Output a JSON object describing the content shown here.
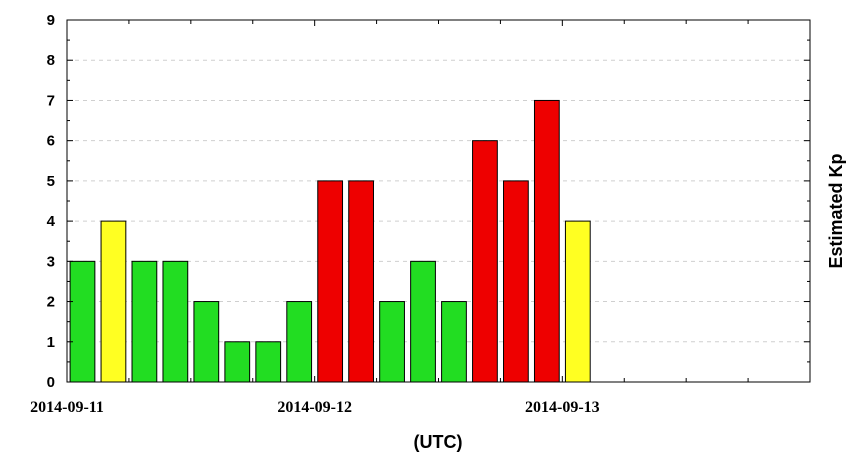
{
  "chart_data": {
    "type": "bar",
    "x": [
      "2014-09-11 00:00",
      "2014-09-11 03:00",
      "2014-09-11 06:00",
      "2014-09-11 09:00",
      "2014-09-11 12:00",
      "2014-09-11 15:00",
      "2014-09-11 18:00",
      "2014-09-11 21:00",
      "2014-09-12 00:00",
      "2014-09-12 03:00",
      "2014-09-12 06:00",
      "2014-09-12 09:00",
      "2014-09-12 12:00",
      "2014-09-12 15:00",
      "2014-09-12 18:00",
      "2014-09-12 21:00",
      "2014-09-13 00:00"
    ],
    "values": [
      3,
      4,
      3,
      3,
      2,
      1,
      1,
      2,
      5,
      5,
      2,
      3,
      2,
      6,
      5,
      7,
      4
    ],
    "bar_colors": [
      "#22dd22",
      "#ffff22",
      "#22dd22",
      "#22dd22",
      "#22dd22",
      "#22dd22",
      "#22dd22",
      "#22dd22",
      "#ee0000",
      "#ee0000",
      "#22dd22",
      "#22dd22",
      "#22dd22",
      "#ee0000",
      "#ee0000",
      "#ee0000",
      "#ffff22"
    ],
    "xlim": [
      "2014-09-11 00:00",
      "2014-09-14 00:00"
    ],
    "x_tick_labels": [
      "2014-09-11",
      "2014-09-12",
      "2014-09-13"
    ],
    "x_tick_values": [
      "2014-09-11 00:00",
      "2014-09-12 00:00",
      "2014-09-13 00:00"
    ],
    "ylim": [
      0,
      9
    ],
    "y_ticks": [
      0,
      1,
      2,
      3,
      4,
      5,
      6,
      7,
      8,
      9
    ],
    "xlabel": "(UTC)",
    "ylabel": "Estimated Kp",
    "title": "",
    "grid": "horizontal dashed"
  }
}
